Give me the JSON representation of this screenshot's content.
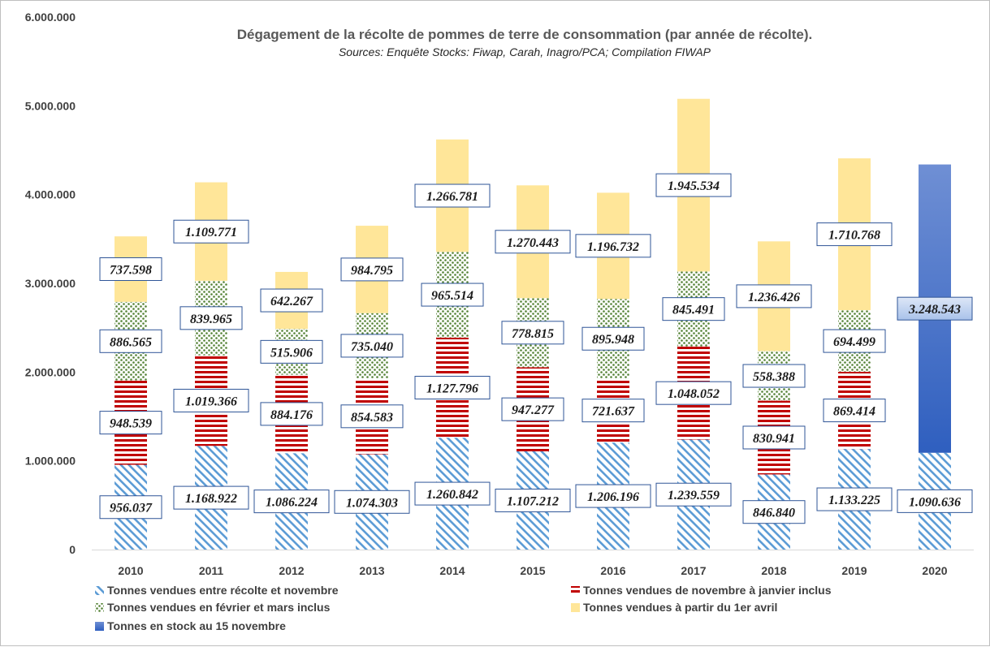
{
  "chart_data": {
    "type": "bar",
    "stacked": true,
    "title": "Dégagement de la récolte de pommes de terre de consommation  (par année de récolte).",
    "subtitle": "Sources: Enquête Stocks: Fiwap, Carah, Inagro/PCA; Compilation FIWAP",
    "categories": [
      "2010",
      "2011",
      "2012",
      "2013",
      "2014",
      "2015",
      "2016",
      "2017",
      "2018",
      "2019",
      "2020"
    ],
    "ylim": [
      0,
      6000000
    ],
    "yticks": [
      0,
      1000000,
      2000000,
      3000000,
      4000000,
      5000000,
      6000000
    ],
    "ytick_labels": [
      "0",
      "1.000.000",
      "2.000.000",
      "3.000.000",
      "4.000.000",
      "5.000.000",
      "6.000.000"
    ],
    "grid": false,
    "legend_position": "bottom",
    "series": [
      {
        "name": "Tonnes vendues entre récolte et novembre",
        "pattern": "diagonal-stripes",
        "color": "#5b9bd5",
        "values": [
          956037,
          1168922,
          1086224,
          1074303,
          1260842,
          1107212,
          1206196,
          1239559,
          846840,
          1133225,
          1090636
        ],
        "labels": [
          "956.037",
          "1.168.922",
          "1.086.224",
          "1.074.303",
          "1.260.842",
          "1.107.212",
          "1.206.196",
          "1.239.559",
          "846.840",
          "1.133.225",
          "1.090.636"
        ]
      },
      {
        "name": "Tonnes vendues de novembre à janvier inclus",
        "pattern": "horizontal-stripes",
        "color": "#c00000",
        "values": [
          948539,
          1019366,
          884176,
          854583,
          1127796,
          947277,
          721637,
          1048052,
          830941,
          869414,
          null
        ],
        "labels": [
          "948.539",
          "1.019.366",
          "884.176",
          "854.583",
          "1.127.796",
          "947.277",
          "721.637",
          "1.048.052",
          "830.941",
          "869.414",
          ""
        ]
      },
      {
        "name": "Tonnes vendues en février et mars inclus",
        "pattern": "dots",
        "color": "#548235",
        "values": [
          886565,
          839965,
          515906,
          735040,
          965514,
          778815,
          895948,
          845491,
          558388,
          694499,
          null
        ],
        "labels": [
          "886.565",
          "839.965",
          "515.906",
          "735.040",
          "965.514",
          "778.815",
          "895.948",
          "845.491",
          "558.388",
          "694.499",
          ""
        ]
      },
      {
        "name": "Tonnes vendues à partir du 1er avril",
        "pattern": "solid",
        "color": "#ffe699",
        "values": [
          737598,
          1109771,
          642267,
          984795,
          1266781,
          1270443,
          1196732,
          1945534,
          1236426,
          1710768,
          null
        ],
        "labels": [
          "737.598",
          "1.109.771",
          "642.267",
          "984.795",
          "1.266.781",
          "1.270.443",
          "1.196.732",
          "1.945.534",
          "1.236.426",
          "1.710.768",
          ""
        ]
      },
      {
        "name": "Tonnes en stock au 15 novembre",
        "pattern": "gradient",
        "color": "#4472c4",
        "values": [
          null,
          null,
          null,
          null,
          null,
          null,
          null,
          null,
          null,
          null,
          3248543
        ],
        "labels": [
          "",
          "",
          "",
          "",
          "",
          "",
          "",
          "",
          "",
          "",
          "3.248.543"
        ]
      }
    ]
  }
}
